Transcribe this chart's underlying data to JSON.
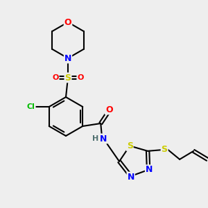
{
  "bg_color": "#eeeeee",
  "atom_colors": {
    "O": "#ff0000",
    "N": "#0000ff",
    "S": "#cccc00",
    "Cl": "#00bb00",
    "C": "#000000",
    "H": "#507070"
  },
  "bond_color": "#000000",
  "bond_width": 1.5
}
